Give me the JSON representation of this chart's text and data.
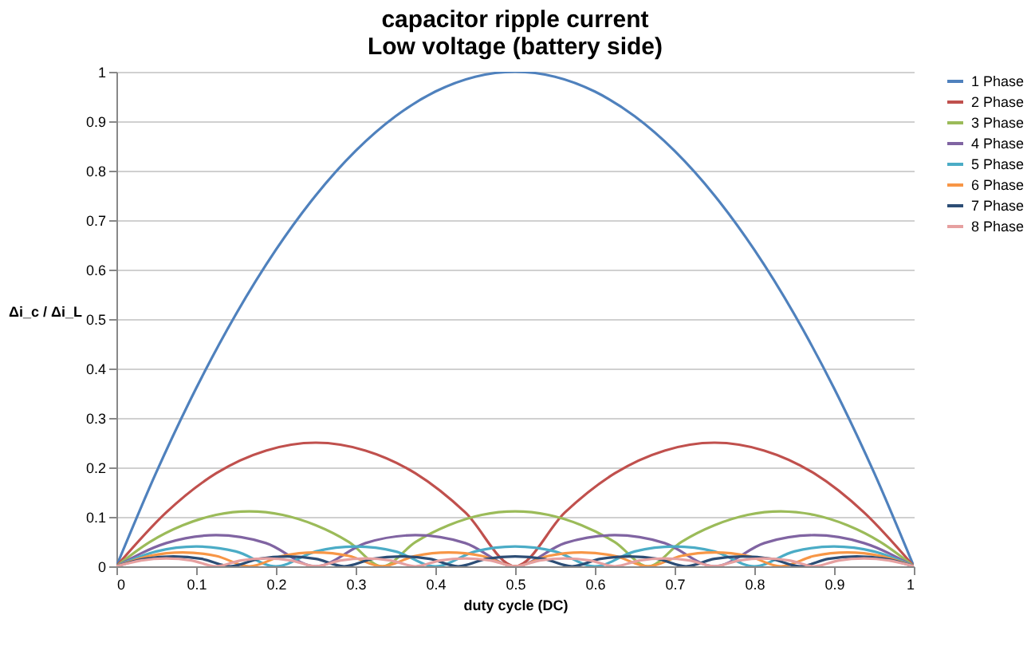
{
  "chart_data": {
    "type": "line",
    "title": "capacitor ripple current",
    "subtitle": "Low voltage (battery side)",
    "xlabel": "duty cycle (DC)",
    "ylabel": "Δi_c / Δi_L",
    "xlim": [
      0,
      1
    ],
    "ylim": [
      0,
      1
    ],
    "xticks": [
      0,
      0.1,
      0.2,
      0.3,
      0.4,
      0.5,
      0.6,
      0.7,
      0.8,
      0.9,
      1
    ],
    "yticks": [
      0,
      0.1,
      0.2,
      0.3,
      0.4,
      0.5,
      0.6,
      0.7,
      0.8,
      0.9,
      1
    ],
    "grid": "y",
    "legend": "right",
    "line_style": "solid",
    "series": [
      {
        "name": "1 Phase",
        "color": "#4f81bd",
        "x": [
          0,
          0.05,
          0.1,
          0.15,
          0.2,
          0.25,
          0.3,
          0.35,
          0.4,
          0.45,
          0.5,
          0.55,
          0.6,
          0.65,
          0.7,
          0.75,
          0.8,
          0.85,
          0.9,
          0.95,
          1
        ],
        "values": [
          0,
          0.19,
          0.36,
          0.51,
          0.64,
          0.75,
          0.84,
          0.91,
          0.96,
          0.99,
          1,
          0.99,
          0.96,
          0.91,
          0.84,
          0.75,
          0.64,
          0.51,
          0.36,
          0.19,
          0
        ]
      },
      {
        "name": "2 Phase",
        "color": "#c0504d",
        "x": [
          0,
          0.0625,
          0.125,
          0.1875,
          0.25,
          0.3125,
          0.375,
          0.4375,
          0.5,
          0.5625,
          0.625,
          0.6875,
          0.75,
          0.8125,
          0.875,
          0.9375,
          1
        ],
        "values": [
          0,
          0.109,
          0.188,
          0.234,
          0.25,
          0.234,
          0.188,
          0.109,
          0,
          0.109,
          0.188,
          0.234,
          0.25,
          0.234,
          0.188,
          0.109,
          0
        ]
      },
      {
        "name": "3 Phase",
        "color": "#9bbb59",
        "x": [
          0,
          0.0417,
          0.0833,
          0.125,
          0.1667,
          0.2083,
          0.25,
          0.2917,
          0.3333,
          0.375,
          0.4167,
          0.4583,
          0.5,
          0.5417,
          0.5833,
          0.625,
          0.6667,
          0.7083,
          0.75,
          0.7917,
          0.8333,
          0.875,
          0.9167,
          0.9583,
          1
        ],
        "values": [
          0,
          0.049,
          0.083,
          0.104,
          0.111,
          0.104,
          0.083,
          0.049,
          0,
          0.049,
          0.083,
          0.104,
          0.111,
          0.104,
          0.083,
          0.049,
          0,
          0.049,
          0.083,
          0.104,
          0.111,
          0.104,
          0.083,
          0.049,
          0
        ]
      },
      {
        "name": "4 Phase",
        "color": "#8064a2",
        "x": [
          0,
          0.0625,
          0.125,
          0.1875,
          0.25,
          0.3125,
          0.375,
          0.4375,
          0.5,
          0.5625,
          0.625,
          0.6875,
          0.75,
          0.8125,
          0.875,
          0.9375,
          1
        ],
        "values": [
          0,
          0.047,
          0.063,
          0.047,
          0,
          0.047,
          0.063,
          0.047,
          0,
          0.047,
          0.063,
          0.047,
          0,
          0.047,
          0.063,
          0.047,
          0
        ]
      },
      {
        "name": "5 Phase",
        "color": "#4bacc6",
        "x": [
          0,
          0.05,
          0.1,
          0.15,
          0.2,
          0.25,
          0.3,
          0.35,
          0.4,
          0.45,
          0.5,
          0.55,
          0.6,
          0.65,
          0.7,
          0.75,
          0.8,
          0.85,
          0.9,
          0.95,
          1
        ],
        "values": [
          0,
          0.03,
          0.04,
          0.03,
          0,
          0.03,
          0.04,
          0.03,
          0,
          0.03,
          0.04,
          0.03,
          0,
          0.03,
          0.04,
          0.03,
          0,
          0.03,
          0.04,
          0.03,
          0
        ]
      },
      {
        "name": "6 Phase",
        "color": "#f79646",
        "x": [
          0,
          0.0417,
          0.0833,
          0.125,
          0.1667,
          0.2083,
          0.25,
          0.2917,
          0.3333,
          0.375,
          0.4167,
          0.4583,
          0.5,
          0.5417,
          0.5833,
          0.625,
          0.6667,
          0.7083,
          0.75,
          0.7917,
          0.8333,
          0.875,
          0.9167,
          0.9583,
          1
        ],
        "values": [
          0,
          0.021,
          0.028,
          0.021,
          0,
          0.021,
          0.028,
          0.021,
          0,
          0.021,
          0.028,
          0.021,
          0,
          0.021,
          0.028,
          0.021,
          0,
          0.021,
          0.028,
          0.021,
          0,
          0.021,
          0.028,
          0.021,
          0
        ]
      },
      {
        "name": "7 Phase",
        "color": "#2c4d75",
        "x": [
          0,
          0.0357,
          0.0714,
          0.1071,
          0.1429,
          0.1786,
          0.2143,
          0.25,
          0.2857,
          0.3214,
          0.3571,
          0.3929,
          0.4286,
          0.4643,
          0.5,
          0.5357,
          0.5714,
          0.6071,
          0.6429,
          0.6786,
          0.7143,
          0.75,
          0.7857,
          0.8214,
          0.8571,
          0.8929,
          0.9286,
          0.9643,
          1
        ],
        "values": [
          0,
          0.015,
          0.02,
          0.015,
          0,
          0.015,
          0.02,
          0.015,
          0,
          0.015,
          0.02,
          0.015,
          0,
          0.015,
          0.02,
          0.015,
          0,
          0.015,
          0.02,
          0.015,
          0,
          0.015,
          0.02,
          0.015,
          0,
          0.015,
          0.02,
          0.015,
          0
        ]
      },
      {
        "name": "8 Phase",
        "color": "#e6a0a0",
        "x": [
          0,
          0.03125,
          0.0625,
          0.09375,
          0.125,
          0.15625,
          0.1875,
          0.21875,
          0.25,
          0.28125,
          0.3125,
          0.34375,
          0.375,
          0.40625,
          0.4375,
          0.46875,
          0.5,
          0.53125,
          0.5625,
          0.59375,
          0.625,
          0.65625,
          0.6875,
          0.71875,
          0.75,
          0.78125,
          0.8125,
          0.84375,
          0.875,
          0.90625,
          0.9375,
          0.96875,
          1
        ],
        "values": [
          0,
          0.012,
          0.016,
          0.012,
          0,
          0.012,
          0.016,
          0.012,
          0,
          0.012,
          0.016,
          0.012,
          0,
          0.012,
          0.016,
          0.012,
          0,
          0.012,
          0.016,
          0.012,
          0,
          0.012,
          0.016,
          0.012,
          0,
          0.012,
          0.016,
          0.012,
          0,
          0.012,
          0.016,
          0.012,
          0
        ]
      }
    ]
  }
}
